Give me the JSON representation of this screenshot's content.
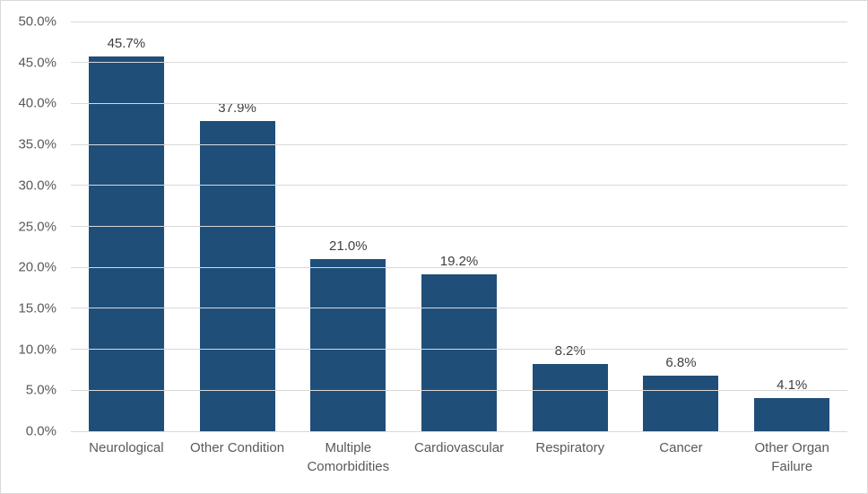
{
  "chart_data": {
    "type": "bar",
    "title": "",
    "xlabel": "",
    "ylabel": "",
    "categories": [
      "Neurological",
      "Other Condition",
      "Multiple Comorbidities",
      "Cardiovascular",
      "Respiratory",
      "Cancer",
      "Other Organ Failure"
    ],
    "values": [
      45.7,
      37.9,
      21.0,
      19.2,
      8.2,
      6.8,
      4.1
    ],
    "value_labels": [
      "45.7%",
      "37.9%",
      "21.0%",
      "19.2%",
      "8.2%",
      "6.8%",
      "4.1%"
    ],
    "y_ticks": [
      "50.0%",
      "45.0%",
      "40.0%",
      "35.0%",
      "30.0%",
      "25.0%",
      "20.0%",
      "15.0%",
      "10.0%",
      "5.0%",
      "0.0%"
    ],
    "ylim": [
      0,
      50
    ],
    "grid": "horizontal",
    "legend_position": "none",
    "colors": {
      "bar_fill": "#1F4E79",
      "gridline": "#D9D9D9",
      "chart_border": "#D9D9D9",
      "axis_label_text": "#595959",
      "data_label_text": "#404040",
      "background": "#FFFFFF"
    }
  }
}
